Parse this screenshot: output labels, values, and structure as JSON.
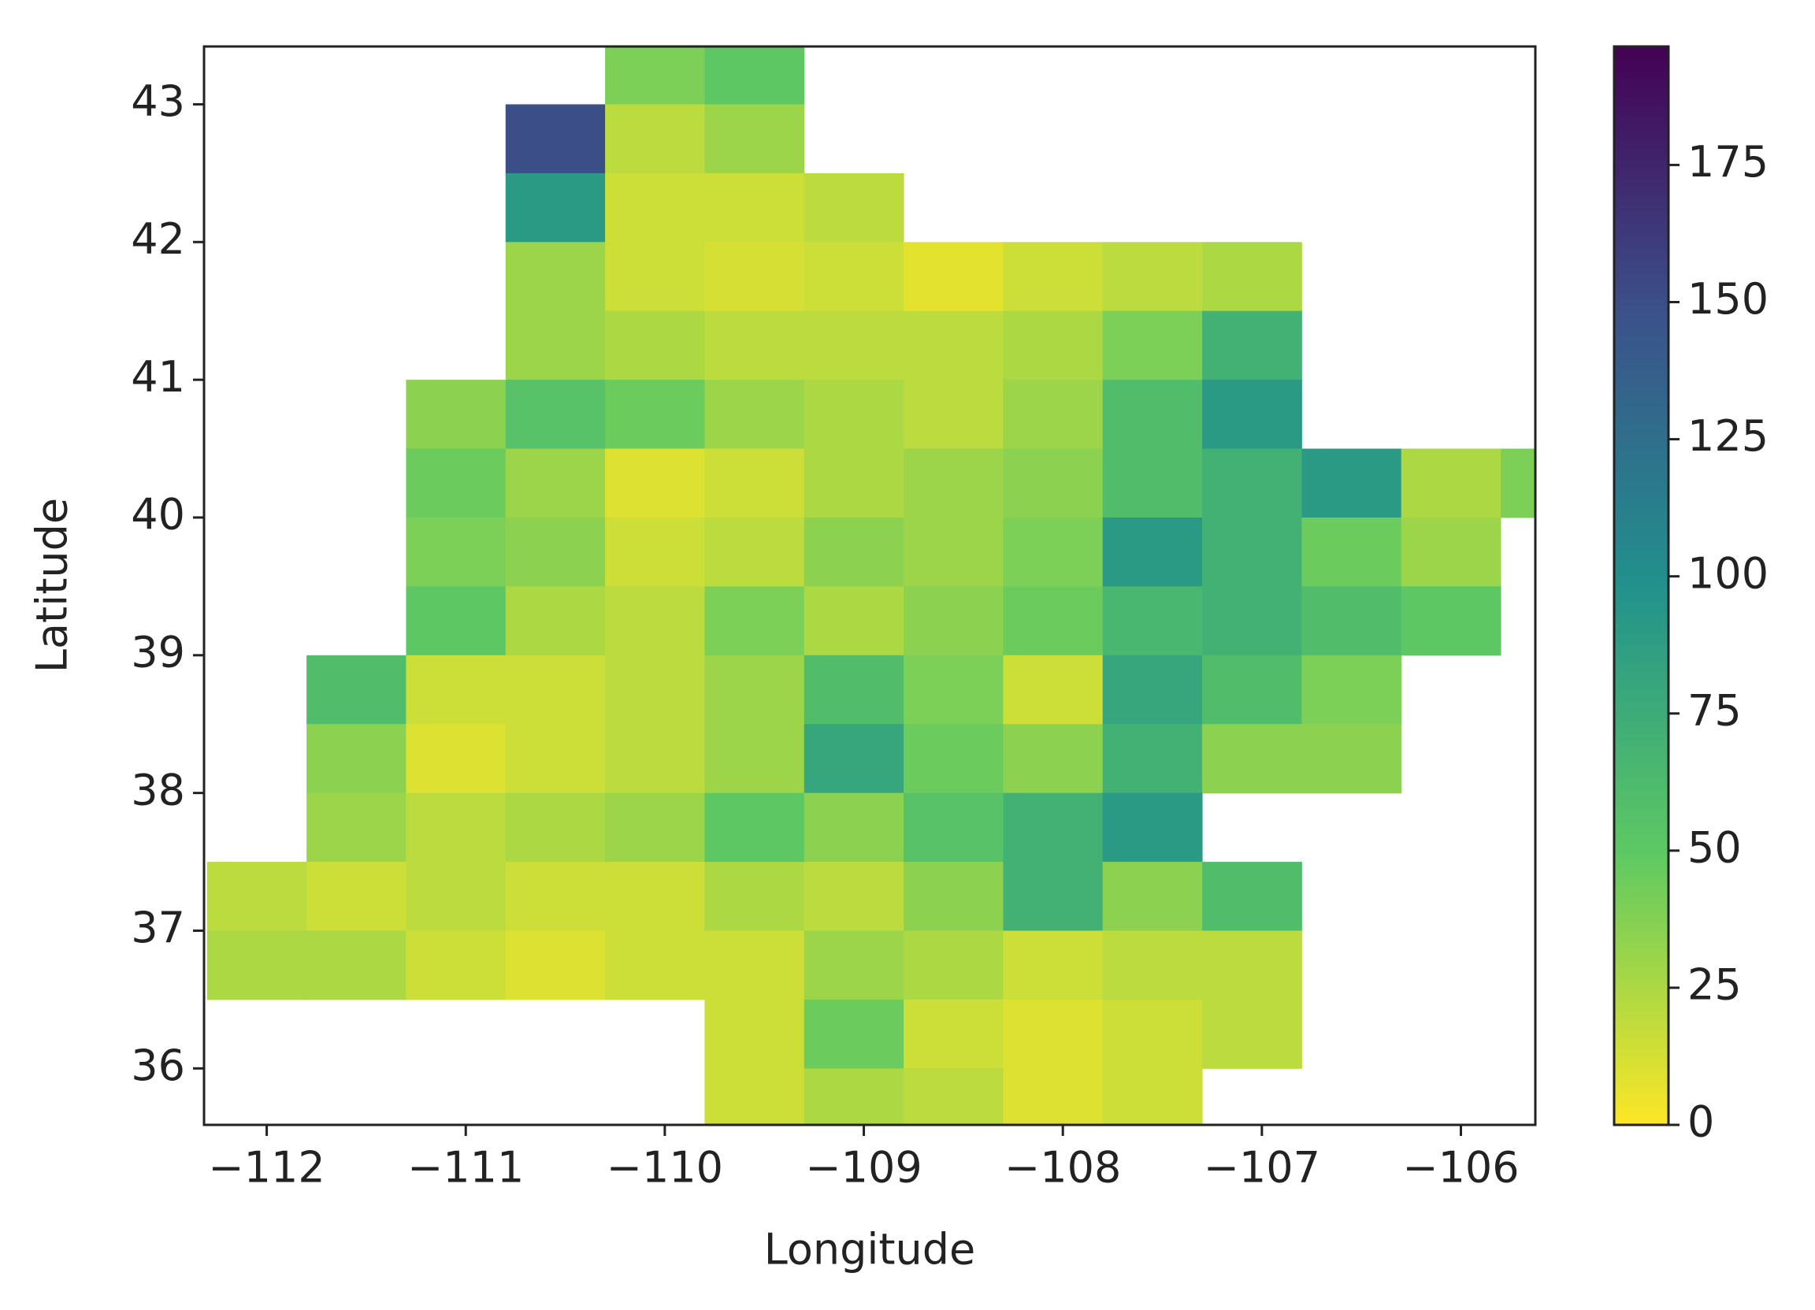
{
  "chart_data": {
    "type": "heatmap",
    "xlabel": "Longitude",
    "ylabel": "Latitude",
    "xlim": [
      -112.315,
      -105.626
    ],
    "ylim": [
      35.59,
      43.42
    ],
    "xticks": [
      {
        "value": -112,
        "label": "−112"
      },
      {
        "value": -111,
        "label": "−111"
      },
      {
        "value": -110,
        "label": "−110"
      },
      {
        "value": -109,
        "label": "−109"
      },
      {
        "value": -108,
        "label": "−108"
      },
      {
        "value": -107,
        "label": "−107"
      },
      {
        "value": -106,
        "label": "−106"
      }
    ],
    "yticks": [
      36,
      37,
      38,
      39,
      40,
      41,
      42,
      43
    ],
    "x": [
      -112.05,
      -111.55,
      -111.05,
      -110.55,
      -110.05,
      -109.55,
      -109.05,
      -108.55,
      -108.05,
      -107.55,
      -107.05,
      -106.55,
      -106.05,
      -105.55
    ],
    "y": [
      43.25,
      42.75,
      42.25,
      41.75,
      41.25,
      40.75,
      40.25,
      39.75,
      39.25,
      38.75,
      38.25,
      37.75,
      37.25,
      36.75,
      36.25,
      35.75
    ],
    "z": [
      [
        null,
        null,
        null,
        null,
        40,
        50,
        null,
        null,
        null,
        null,
        null,
        null,
        null,
        null
      ],
      [
        null,
        null,
        null,
        150,
        20,
        30,
        null,
        null,
        null,
        null,
        null,
        null,
        null,
        null
      ],
      [
        null,
        null,
        null,
        90,
        15,
        15,
        20,
        null,
        null,
        null,
        null,
        null,
        null,
        null
      ],
      [
        null,
        null,
        null,
        30,
        15,
        12,
        15,
        8,
        15,
        20,
        25,
        null,
        null,
        null
      ],
      [
        null,
        null,
        null,
        30,
        25,
        20,
        20,
        20,
        25,
        40,
        70,
        null,
        null,
        null
      ],
      [
        null,
        null,
        35,
        55,
        45,
        30,
        25,
        20,
        30,
        60,
        90,
        null,
        null,
        null
      ],
      [
        null,
        null,
        45,
        30,
        10,
        15,
        25,
        30,
        35,
        60,
        70,
        90,
        25,
        40
      ],
      [
        null,
        null,
        40,
        35,
        15,
        20,
        35,
        30,
        40,
        90,
        70,
        45,
        30,
        null
      ],
      [
        null,
        null,
        50,
        25,
        20,
        40,
        25,
        35,
        45,
        65,
        70,
        60,
        50,
        null
      ],
      [
        null,
        60,
        15,
        15,
        20,
        30,
        60,
        40,
        15,
        80,
        60,
        40,
        null,
        null
      ],
      [
        null,
        35,
        10,
        15,
        20,
        30,
        80,
        45,
        35,
        70,
        35,
        35,
        null,
        null
      ],
      [
        null,
        30,
        20,
        25,
        30,
        50,
        35,
        55,
        70,
        90,
        null,
        null,
        null,
        null
      ],
      [
        20,
        15,
        20,
        15,
        15,
        25,
        20,
        35,
        70,
        35,
        60,
        null,
        null,
        null
      ],
      [
        25,
        25,
        15,
        10,
        15,
        15,
        30,
        25,
        15,
        20,
        20,
        null,
        null,
        null
      ],
      [
        null,
        null,
        null,
        null,
        null,
        15,
        45,
        15,
        10,
        15,
        20,
        null,
        null,
        null
      ],
      [
        null,
        null,
        null,
        null,
        null,
        15,
        25,
        20,
        10,
        15,
        null,
        null,
        null,
        null
      ]
    ],
    "clim": [
      0,
      196.6
    ],
    "cticks": [
      0,
      25,
      50,
      75,
      100,
      125,
      150,
      175
    ],
    "colormap": [
      "#fde725",
      "#5ec962",
      "#21918c",
      "#3b528b",
      "#440154"
    ]
  }
}
